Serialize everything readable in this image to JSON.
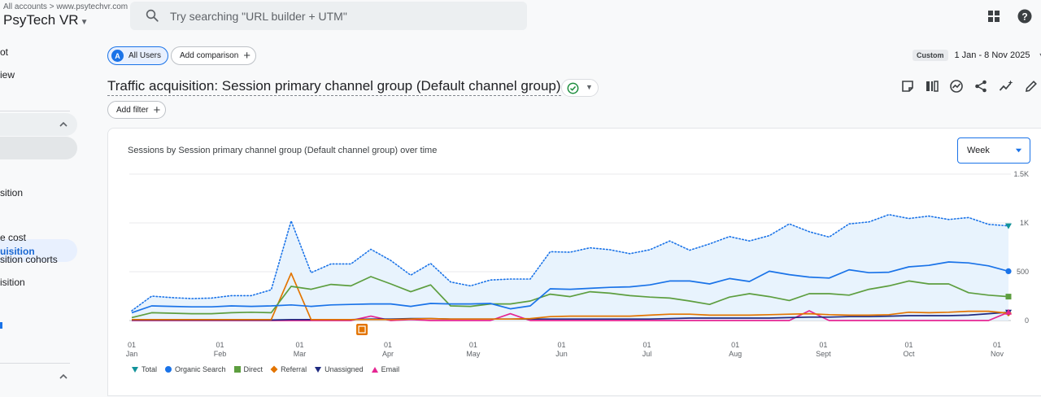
{
  "header": {
    "breadcrumb_root": "All accounts",
    "breadcrumb_sep": ">",
    "breadcrumb_site": "www.psytechvr.com",
    "property_name": "PsyTech VR",
    "search_placeholder": "Try searching \"URL builder + UTM\""
  },
  "sidebar": {
    "items": [
      "ot",
      "iew",
      "sition",
      "uisition",
      "e cost",
      "sition cohorts",
      "isition"
    ]
  },
  "toolbar": {
    "all_users_badge": "A",
    "all_users_label": "All Users",
    "add_comparison_label": "Add comparison",
    "add_comparison_icon": "+",
    "date_chip": "Custom",
    "date_range": "1 Jan - 8 Nov 2025",
    "report_title": "Traffic acquisition: Session primary channel group (Default channel group)",
    "add_filter_label": "Add filter",
    "add_filter_icon": "+"
  },
  "chart_data": {
    "type": "line",
    "title": "Sessions by Session primary channel group (Default channel group) over time",
    "granularity": "Week",
    "ylim": [
      0,
      1500
    ],
    "yticks": [
      "1.5K",
      "1K",
      "500",
      "0"
    ],
    "x_ticks": [
      {
        "day": "01",
        "month": "Jan"
      },
      {
        "day": "01",
        "month": "Feb"
      },
      {
        "day": "01",
        "month": "Mar"
      },
      {
        "day": "01",
        "month": "Apr"
      },
      {
        "day": "01",
        "month": "May"
      },
      {
        "day": "01",
        "month": "Jun"
      },
      {
        "day": "01",
        "month": "Jul"
      },
      {
        "day": "01",
        "month": "Aug"
      },
      {
        "day": "01",
        "month": "Sept"
      },
      {
        "day": "01",
        "month": "Oct"
      },
      {
        "day": "01",
        "month": "Nov"
      }
    ],
    "weeks": 45,
    "series": [
      {
        "name": "Total",
        "color": "#1a73e8",
        "style": "dotted",
        "values": [
          100,
          250,
          235,
          225,
          230,
          255,
          255,
          315,
          1020,
          490,
          580,
          580,
          730,
          615,
          465,
          585,
          395,
          355,
          415,
          425,
          425,
          705,
          700,
          745,
          725,
          685,
          725,
          815,
          720,
          785,
          860,
          815,
          870,
          990,
          910,
          855,
          990,
          1010,
          1085,
          1045,
          1070,
          1035,
          1055,
          985,
          970
        ]
      },
      {
        "name": "Organic Search",
        "color": "#1a73e8",
        "style": "solid",
        "values": [
          80,
          150,
          145,
          140,
          140,
          150,
          145,
          150,
          160,
          145,
          160,
          165,
          170,
          170,
          145,
          175,
          170,
          170,
          175,
          120,
          150,
          325,
          320,
          330,
          340,
          345,
          365,
          405,
          405,
          375,
          430,
          400,
          505,
          470,
          445,
          435,
          520,
          490,
          495,
          550,
          565,
          600,
          590,
          560,
          505
        ]
      },
      {
        "name": "Direct",
        "color": "#5d9e3f",
        "style": "solid",
        "values": [
          30,
          80,
          75,
          70,
          70,
          80,
          85,
          80,
          350,
          320,
          370,
          355,
          450,
          375,
          295,
          365,
          150,
          145,
          170,
          170,
          200,
          270,
          245,
          295,
          280,
          255,
          240,
          230,
          200,
          165,
          240,
          275,
          245,
          205,
          275,
          275,
          260,
          320,
          355,
          405,
          375,
          375,
          285,
          260,
          245
        ]
      },
      {
        "name": "Referral",
        "color": "#e37400",
        "style": "solid",
        "values": [
          10,
          10,
          10,
          10,
          10,
          10,
          10,
          10,
          485,
          10,
          10,
          10,
          10,
          10,
          15,
          20,
          15,
          15,
          15,
          15,
          20,
          40,
          45,
          45,
          45,
          45,
          55,
          65,
          65,
          55,
          55,
          55,
          60,
          65,
          70,
          60,
          55,
          55,
          60,
          85,
          80,
          85,
          95,
          95,
          75
        ]
      },
      {
        "name": "Unassigned",
        "color": "#1f2a80",
        "style": "solid",
        "values": [
          5,
          5,
          5,
          5,
          5,
          5,
          5,
          5,
          10,
          10,
          10,
          10,
          15,
          15,
          20,
          20,
          15,
          15,
          15,
          15,
          15,
          15,
          15,
          15,
          15,
          15,
          15,
          20,
          25,
          25,
          25,
          25,
          25,
          30,
          35,
          35,
          40,
          40,
          45,
          50,
          50,
          50,
          55,
          70,
          85
        ]
      },
      {
        "name": "Email",
        "color": "#e52592",
        "style": "solid",
        "values": [
          0,
          0,
          0,
          0,
          0,
          0,
          0,
          0,
          0,
          0,
          0,
          0,
          45,
          0,
          10,
          0,
          0,
          0,
          0,
          70,
          0,
          0,
          0,
          0,
          0,
          0,
          0,
          0,
          0,
          0,
          0,
          0,
          0,
          0,
          100,
          0,
          0,
          0,
          0,
          0,
          0,
          0,
          0,
          0,
          85
        ]
      }
    ]
  }
}
